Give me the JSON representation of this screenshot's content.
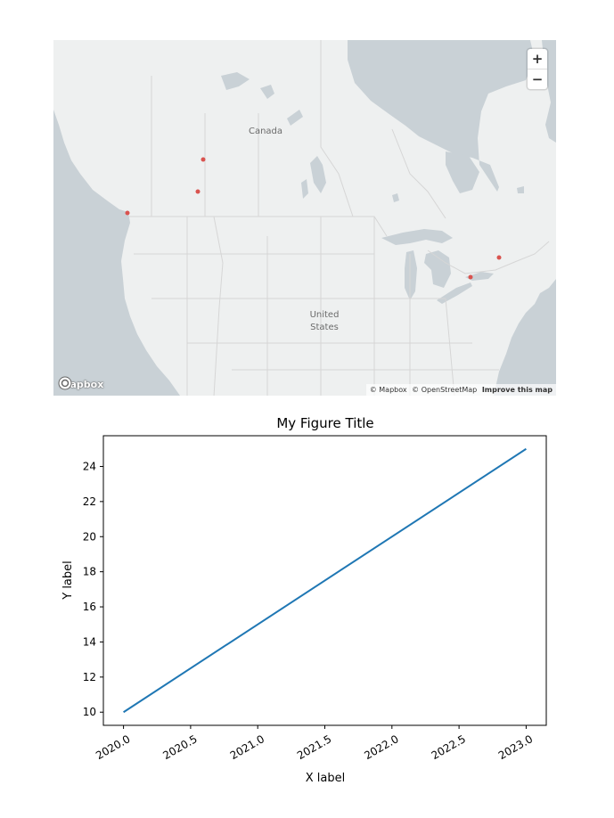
{
  "map": {
    "labels": {
      "canada": "Canada",
      "united_states_line1": "United",
      "united_states_line2": "States"
    },
    "zoom_in_label": "+",
    "zoom_out_label": "−",
    "logo_text": "mapbox",
    "attribution": {
      "mapbox": "© Mapbox",
      "osm": "© OpenStreetMap",
      "improve": "Improve this map"
    },
    "colors": {
      "land": "#eef0f0",
      "water": "#c9d1d6",
      "marker": "#d9534f",
      "borders": "#d6d6d6"
    }
  },
  "chart_data": {
    "type": "line",
    "title": "My Figure Title",
    "xlabel": "X label",
    "ylabel": "Y label",
    "x": [
      2020.0,
      2023.0
    ],
    "series": [
      {
        "values": [
          10,
          25
        ],
        "color": "#1f77b4"
      }
    ],
    "xlim": [
      2019.85,
      2023.15
    ],
    "ylim": [
      9.25,
      25.75
    ],
    "xticks": [
      2020.0,
      2020.5,
      2021.0,
      2021.5,
      2022.0,
      2022.5,
      2023.0
    ],
    "xticklabels": [
      "2020.0",
      "2020.5",
      "2021.0",
      "2021.5",
      "2022.0",
      "2022.5",
      "2023.0"
    ],
    "yticks": [
      10,
      12,
      14,
      16,
      18,
      20,
      22,
      24
    ],
    "yticklabels": [
      "10",
      "12",
      "14",
      "16",
      "18",
      "20",
      "22",
      "24"
    ],
    "grid": false
  }
}
